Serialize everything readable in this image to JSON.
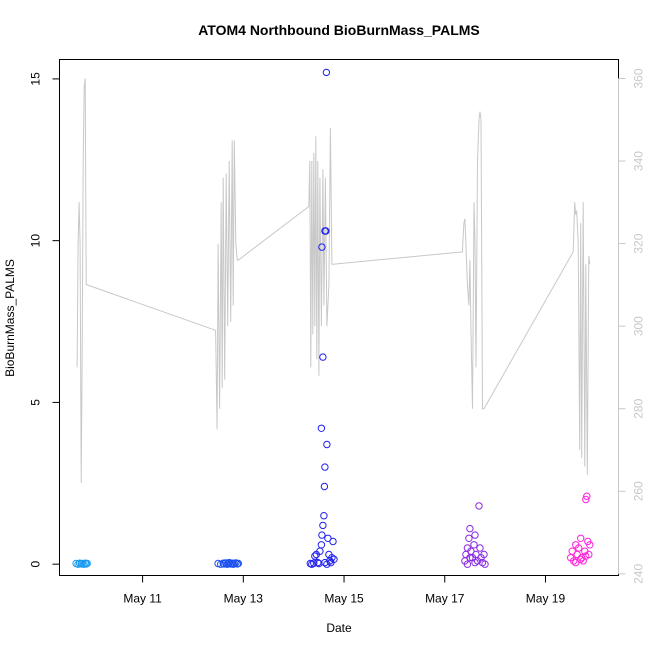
{
  "chart_data": {
    "type": "scatter",
    "title": "ATOM4 Northbound BioBurnMass_PALMS",
    "xlabel": "Date",
    "ylabel": "BioBurnMass_PALMS",
    "x_ticks": [
      "May 11",
      "May 13",
      "May 15",
      "May 17",
      "May 19"
    ],
    "x_tick_values": [
      11,
      13,
      15,
      17,
      19
    ],
    "xlim": [
      9.35,
      20.45
    ],
    "ylim": [
      -0.35,
      15.6
    ],
    "y_ticks": [
      "0",
      "5",
      "10",
      "15"
    ],
    "y_tick_values": [
      0,
      5,
      10,
      15
    ],
    "y2lim": [
      239.6,
      364.6
    ],
    "y2_ticks": [
      "240",
      "260",
      "280",
      "300",
      "320",
      "340",
      "360"
    ],
    "y2_tick_values": [
      240,
      260,
      280,
      300,
      320,
      340,
      360
    ],
    "grid": false,
    "colors": {
      "secondary_line": "#c8c8c8",
      "flight1": "#1a9bf0",
      "flight2": "#1a4ff0",
      "flight3": "#2020f0",
      "flight4": "#8a2be2",
      "flight5": "#ff20d8"
    },
    "series": [
      {
        "color_key": "flight1",
        "points": [
          [
            9.68,
            0.02
          ],
          [
            9.72,
            0.0
          ],
          [
            9.75,
            0.03
          ],
          [
            9.78,
            0.01
          ],
          [
            9.8,
            0.02
          ],
          [
            9.83,
            0.0
          ],
          [
            9.86,
            0.03
          ],
          [
            9.88,
            0.01
          ],
          [
            9.9,
            0.02
          ]
        ]
      },
      {
        "color_key": "flight2",
        "points": [
          [
            12.5,
            0.02
          ],
          [
            12.55,
            0.0
          ],
          [
            12.6,
            0.03
          ],
          [
            12.62,
            0.01
          ],
          [
            12.65,
            0.04
          ],
          [
            12.68,
            0.0
          ],
          [
            12.7,
            0.02
          ],
          [
            12.72,
            0.05
          ],
          [
            12.75,
            0.01
          ],
          [
            12.78,
            0.03
          ],
          [
            12.8,
            0.0
          ],
          [
            12.82,
            0.02
          ],
          [
            12.85,
            0.04
          ],
          [
            12.88,
            0.01
          ],
          [
            12.9,
            0.02
          ]
        ]
      },
      {
        "color_key": "flight3",
        "points": [
          [
            14.33,
            0.02
          ],
          [
            14.36,
            0.0
          ],
          [
            14.4,
            0.03
          ],
          [
            14.42,
            0.25
          ],
          [
            14.45,
            0.3
          ],
          [
            14.48,
            0.05
          ],
          [
            14.5,
            0.02
          ],
          [
            14.52,
            0.4
          ],
          [
            14.55,
            0.6
          ],
          [
            14.56,
            0.9
          ],
          [
            14.58,
            1.2
          ],
          [
            14.6,
            1.5
          ],
          [
            14.61,
            2.4
          ],
          [
            14.62,
            3.0
          ],
          [
            14.55,
            4.2
          ],
          [
            14.58,
            6.4
          ],
          [
            14.56,
            9.8
          ],
          [
            14.62,
            10.3
          ],
          [
            14.64,
            10.3
          ],
          [
            14.65,
            15.2
          ],
          [
            14.66,
            3.7
          ],
          [
            14.68,
            0.8
          ],
          [
            14.7,
            0.3
          ],
          [
            14.72,
            0.1
          ],
          [
            14.74,
            0.05
          ],
          [
            14.76,
            0.2
          ],
          [
            14.78,
            0.7
          ],
          [
            14.8,
            0.15
          ],
          [
            14.62,
            0.05
          ],
          [
            14.66,
            0.0
          ]
        ]
      },
      {
        "color_key": "flight4",
        "points": [
          [
            17.4,
            0.1
          ],
          [
            17.42,
            0.3
          ],
          [
            17.45,
            0.5
          ],
          [
            17.48,
            0.8
          ],
          [
            17.5,
            1.1
          ],
          [
            17.52,
            0.4
          ],
          [
            17.55,
            0.2
          ],
          [
            17.58,
            0.6
          ],
          [
            17.6,
            0.9
          ],
          [
            17.62,
            0.3
          ],
          [
            17.65,
            0.1
          ],
          [
            17.68,
            1.8
          ],
          [
            17.7,
            0.5
          ],
          [
            17.72,
            0.2
          ],
          [
            17.75,
            0.05
          ],
          [
            17.78,
            0.3
          ],
          [
            17.8,
            0.0
          ],
          [
            17.45,
            0.0
          ],
          [
            17.5,
            0.2
          ],
          [
            17.6,
            0.05
          ]
        ]
      },
      {
        "color_key": "flight5",
        "points": [
          [
            19.5,
            0.2
          ],
          [
            19.53,
            0.4
          ],
          [
            19.56,
            0.1
          ],
          [
            19.6,
            0.6
          ],
          [
            19.63,
            0.3
          ],
          [
            19.66,
            0.5
          ],
          [
            19.7,
            0.8
          ],
          [
            19.72,
            0.2
          ],
          [
            19.75,
            0.1
          ],
          [
            19.78,
            0.4
          ],
          [
            19.8,
            2.0
          ],
          [
            19.82,
            2.1
          ],
          [
            19.84,
            0.7
          ],
          [
            19.86,
            0.3
          ],
          [
            19.88,
            0.6
          ],
          [
            19.6,
            0.05
          ],
          [
            19.7,
            0.15
          ],
          [
            19.8,
            0.25
          ]
        ]
      }
    ],
    "secondary_series": {
      "axis": "right",
      "points": [
        [
          9.7,
          290
        ],
        [
          9.72,
          320
        ],
        [
          9.74,
          330
        ],
        [
          9.76,
          320
        ],
        [
          9.78,
          262
        ],
        [
          9.8,
          295
        ],
        [
          9.82,
          340
        ],
        [
          9.84,
          358
        ],
        [
          9.86,
          360
        ],
        [
          9.88,
          310
        ],
        [
          9.9,
          310
        ],
        [
          12.45,
          299
        ],
        [
          12.48,
          275
        ],
        [
          12.5,
          320
        ],
        [
          12.53,
          280
        ],
        [
          12.56,
          330
        ],
        [
          12.58,
          285
        ],
        [
          12.6,
          336
        ],
        [
          12.63,
          287
        ],
        [
          12.66,
          337
        ],
        [
          12.69,
          300
        ],
        [
          12.72,
          340
        ],
        [
          12.75,
          301
        ],
        [
          12.78,
          345
        ],
        [
          12.8,
          305
        ],
        [
          12.82,
          345
        ],
        [
          12.85,
          320
        ],
        [
          12.88,
          316
        ],
        [
          12.9,
          316
        ],
        [
          14.3,
          329
        ],
        [
          14.32,
          340
        ],
        [
          14.34,
          290
        ],
        [
          14.36,
          340
        ],
        [
          14.38,
          298
        ],
        [
          14.4,
          342
        ],
        [
          14.42,
          300
        ],
        [
          14.44,
          346
        ],
        [
          14.46,
          292
        ],
        [
          14.48,
          340
        ],
        [
          14.5,
          288
        ],
        [
          14.52,
          336
        ],
        [
          14.55,
          300
        ],
        [
          14.58,
          338
        ],
        [
          14.6,
          305
        ],
        [
          14.63,
          336
        ],
        [
          14.66,
          300
        ],
        [
          14.7,
          310
        ],
        [
          14.73,
          348
        ],
        [
          14.76,
          315
        ],
        [
          14.78,
          315
        ],
        [
          17.35,
          318
        ],
        [
          17.38,
          325
        ],
        [
          17.4,
          326
        ],
        [
          17.42,
          320
        ],
        [
          17.45,
          310
        ],
        [
          17.48,
          305
        ],
        [
          17.5,
          316
        ],
        [
          17.52,
          300
        ],
        [
          17.55,
          280
        ],
        [
          17.58,
          330
        ],
        [
          17.6,
          320
        ],
        [
          17.62,
          290
        ],
        [
          17.65,
          340
        ],
        [
          17.68,
          350
        ],
        [
          17.7,
          352
        ],
        [
          17.72,
          350
        ],
        [
          17.75,
          280
        ],
        [
          17.78,
          280
        ],
        [
          19.55,
          318
        ],
        [
          19.58,
          330
        ],
        [
          19.6,
          327
        ],
        [
          19.62,
          328
        ],
        [
          19.65,
          320
        ],
        [
          19.68,
          270
        ],
        [
          19.7,
          325
        ],
        [
          19.72,
          268
        ],
        [
          19.75,
          330
        ],
        [
          19.78,
          266
        ],
        [
          19.8,
          315
        ],
        [
          19.83,
          264
        ],
        [
          19.86,
          317
        ],
        [
          19.88,
          315
        ]
      ]
    }
  }
}
